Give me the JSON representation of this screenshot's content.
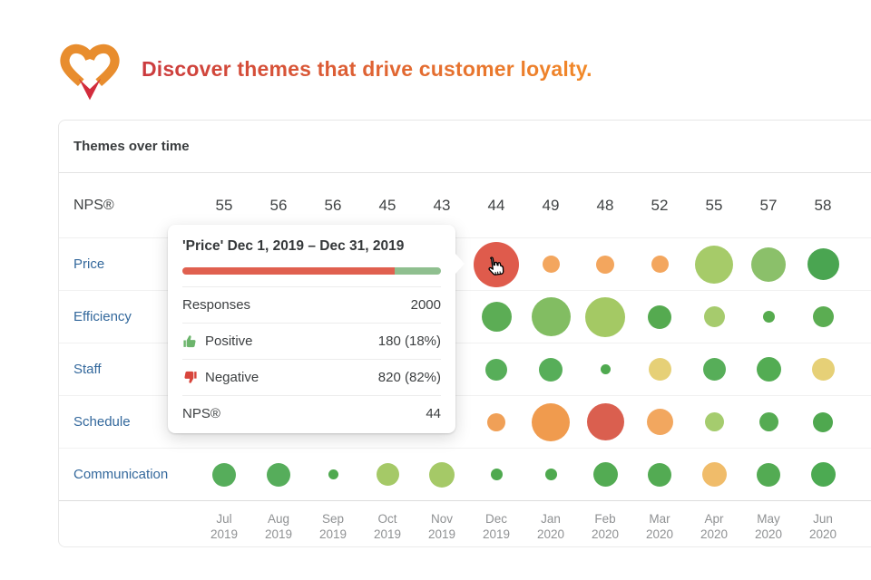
{
  "header": {
    "title": "Discover themes that drive customer loyalty.",
    "title_gradient": [
      "#cb3a3e",
      "#f28a28"
    ],
    "logo_colors": {
      "outline": "#e88d2e",
      "tip": "#d22c3c"
    }
  },
  "card": {
    "title": "Themes over time"
  },
  "chart_data": {
    "type": "bubble-matrix",
    "title": "Themes over time",
    "legend_note": "bubble size = response volume, color = sentiment (red negative to green positive)",
    "months": [
      [
        "Jul",
        "2019"
      ],
      [
        "Aug",
        "2019"
      ],
      [
        "Sep",
        "2019"
      ],
      [
        "Oct",
        "2019"
      ],
      [
        "Nov",
        "2019"
      ],
      [
        "Dec",
        "2019"
      ],
      [
        "Jan",
        "2020"
      ],
      [
        "Feb",
        "2020"
      ],
      [
        "Mar",
        "2020"
      ],
      [
        "Apr",
        "2020"
      ],
      [
        "May",
        "2020"
      ],
      [
        "Jun",
        "2020"
      ]
    ],
    "nps": {
      "label": "NPS®",
      "values": [
        55,
        56,
        56,
        45,
        43,
        44,
        49,
        48,
        52,
        55,
        57,
        58
      ]
    },
    "themes": [
      {
        "label": "Price",
        "bubbles": [
          null,
          null,
          null,
          null,
          null,
          {
            "size": 50,
            "color": "#df5b4c",
            "state": "hovered"
          },
          {
            "size": 19,
            "color": "#f3a65e"
          },
          {
            "size": 20,
            "color": "#f3a65e"
          },
          {
            "size": 19,
            "color": "#f3a65e"
          },
          {
            "size": 42,
            "color": "#a6cb69"
          },
          {
            "size": 38,
            "color": "#8bc06a"
          },
          {
            "size": 35,
            "color": "#4aa551"
          }
        ]
      },
      {
        "label": "Efficiency",
        "bubbles": [
          null,
          null,
          null,
          null,
          null,
          {
            "size": 33,
            "color": "#5cad55"
          },
          {
            "size": 43,
            "color": "#82bd62"
          },
          {
            "size": 44,
            "color": "#a4c964"
          },
          {
            "size": 26,
            "color": "#55aa50"
          },
          {
            "size": 23,
            "color": "#a6cb6d"
          },
          {
            "size": 13,
            "color": "#56ab4e"
          },
          {
            "size": 23,
            "color": "#5bad52"
          }
        ]
      },
      {
        "label": "Staff",
        "bubbles": [
          null,
          null,
          null,
          null,
          null,
          {
            "size": 24,
            "color": "#57ae59"
          },
          {
            "size": 26,
            "color": "#57ae59"
          },
          {
            "size": 11,
            "color": "#4fa94f"
          },
          {
            "size": 25,
            "color": "#e6d077"
          },
          {
            "size": 25,
            "color": "#57ae59"
          },
          {
            "size": 27,
            "color": "#53ac53"
          },
          {
            "size": 25,
            "color": "#e6d077"
          }
        ]
      },
      {
        "label": "Schedule",
        "bubbles": [
          null,
          null,
          null,
          null,
          null,
          {
            "size": 20,
            "color": "#f0a057"
          },
          {
            "size": 42,
            "color": "#f09b4e"
          },
          {
            "size": 41,
            "color": "#da5f4f"
          },
          {
            "size": 29,
            "color": "#f2a75f"
          },
          {
            "size": 21,
            "color": "#a5cc6e"
          },
          {
            "size": 21,
            "color": "#55ab52"
          },
          {
            "size": 22,
            "color": "#4fa84f"
          }
        ]
      },
      {
        "label": "Communication",
        "bubbles": [
          {
            "size": 26,
            "color": "#56ad5b"
          },
          {
            "size": 26,
            "color": "#56ad5b"
          },
          {
            "size": 11,
            "color": "#4fa94f"
          },
          {
            "size": 25,
            "color": "#a5c967"
          },
          {
            "size": 28,
            "color": "#a5c967"
          },
          {
            "size": 13,
            "color": "#4fa94f"
          },
          {
            "size": 13,
            "color": "#4fa94f"
          },
          {
            "size": 27,
            "color": "#53ab53"
          },
          {
            "size": 26,
            "color": "#53ab53"
          },
          {
            "size": 27,
            "color": "#f0bc6a"
          },
          {
            "size": 26,
            "color": "#53ab53"
          },
          {
            "size": 27,
            "color": "#4caa52"
          }
        ]
      }
    ]
  },
  "tooltip": {
    "title": "'Price' Dec 1, 2019 – Dec 31, 2019",
    "bar": {
      "negative_pct": 82,
      "positive_pct": 18,
      "negative_color": "#e0604f",
      "positive_color": "#8fbf8f"
    },
    "rows": [
      {
        "label": "Responses",
        "value": "2000",
        "icon": null
      },
      {
        "label": "Positive",
        "value": "180 (18%)",
        "icon": "thumbs-up-icon",
        "icon_color": "#6cb56c"
      },
      {
        "label": "Negative",
        "value": "820 (82%)",
        "icon": "thumbs-down-icon",
        "icon_color": "#d8453c"
      },
      {
        "label": "NPS®",
        "value": "44",
        "icon": null
      }
    ]
  }
}
